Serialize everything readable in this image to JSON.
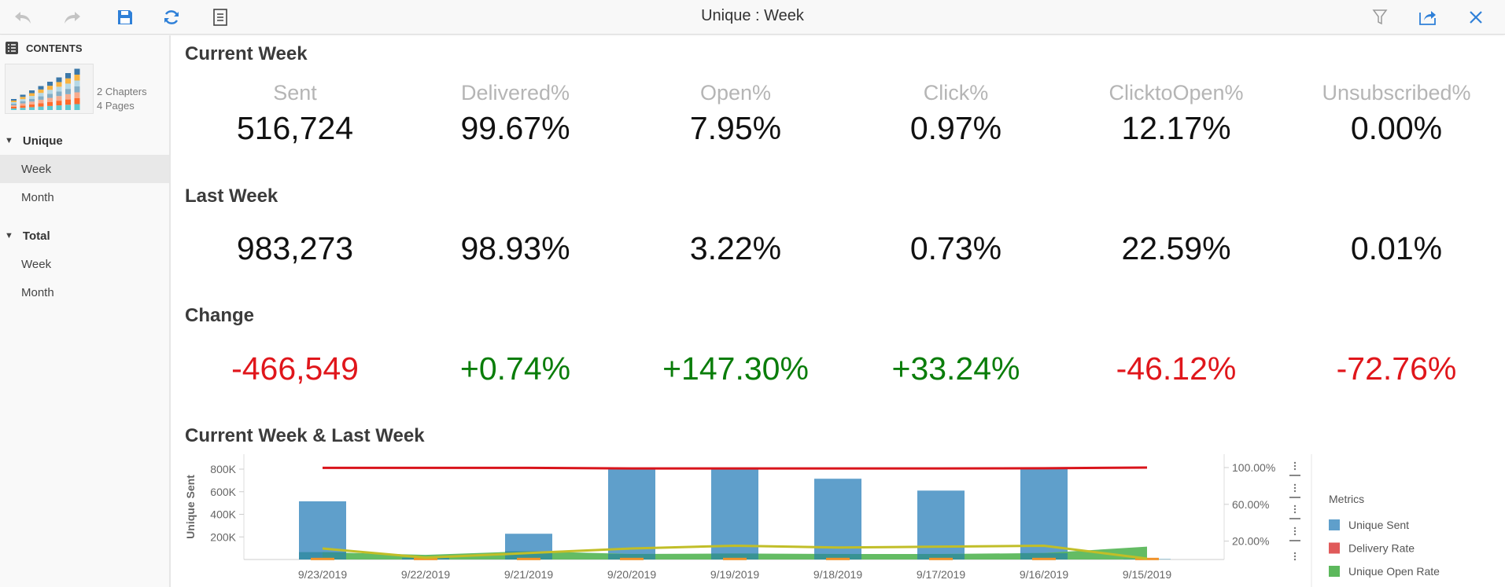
{
  "toolbar": {
    "title": "Unique : Week",
    "icons": [
      "undo-icon",
      "redo-icon",
      "save-icon",
      "refresh-icon",
      "document-list-icon",
      "filter-icon",
      "export-icon",
      "close-icon"
    ]
  },
  "sidebar": {
    "header": "CONTENTS",
    "chapters": "2 Chapters",
    "pages": "4 Pages",
    "groups": [
      {
        "label": "Unique",
        "items": [
          {
            "label": "Week",
            "active": true
          },
          {
            "label": "Month"
          }
        ]
      },
      {
        "label": "Total",
        "items": [
          {
            "label": "Week"
          },
          {
            "label": "Month"
          }
        ]
      }
    ]
  },
  "metrics": {
    "labels": [
      "Sent",
      "Delivered%",
      "Open%",
      "Click%",
      "ClicktoOpen%",
      "Unsubscribed%"
    ],
    "current_week": {
      "title": "Current Week",
      "values": [
        "516,724",
        "99.67%",
        "7.95%",
        "0.97%",
        "12.17%",
        "0.00%"
      ]
    },
    "last_week": {
      "title": "Last Week",
      "values": [
        "983,273",
        "98.93%",
        "3.22%",
        "0.73%",
        "22.59%",
        "0.01%"
      ]
    },
    "change": {
      "title": "Change",
      "values": [
        "-466,549",
        "+0.74%",
        "+147.30%",
        "+33.24%",
        "-46.12%",
        "-72.76%"
      ],
      "signs": [
        "neg",
        "pos",
        "pos",
        "pos",
        "neg",
        "neg"
      ]
    },
    "colors": {
      "negative": "#e0161b",
      "positive": "#0a7d0a"
    }
  },
  "chart_data": {
    "type": "bar",
    "title": "Current Week & Last Week",
    "ylabel": "Unique Sent",
    "categories": [
      "9/23/2019",
      "9/22/2019",
      "9/21/2019",
      "9/20/2019",
      "9/19/2019",
      "9/18/2019",
      "9/17/2019",
      "9/16/2019",
      "9/15/2019"
    ],
    "y_ticks": [
      "200K",
      "400K",
      "600K",
      "800K"
    ],
    "y2_ticks": [
      "20.00%",
      "60.00%",
      "100.00%"
    ],
    "ylim": [
      0,
      800000
    ],
    "y2lim": [
      0,
      100
    ],
    "legend_title": "Metrics",
    "legend": "right",
    "series": [
      {
        "name": "Unique Sent",
        "type": "bar",
        "axis": "left",
        "color": "#5f9fcb",
        "values": [
          515000,
          15000,
          228000,
          800000,
          800000,
          715000,
          610000,
          800000,
          3000
        ]
      },
      {
        "name": "Delivery Rate",
        "type": "line",
        "axis": "right",
        "color": "#d9141b",
        "values": [
          99.7,
          99.7,
          99.7,
          99.0,
          99.0,
          99.0,
          99.0,
          99.3,
          100.0
        ]
      },
      {
        "name": "Unique Open Rate",
        "type": "area",
        "axis": "right",
        "color": "#5cb85c",
        "values": [
          8,
          5,
          9,
          6,
          6.5,
          6,
          6,
          7,
          14
        ]
      },
      {
        "type": "line",
        "axis": "right",
        "color": "#c1be28",
        "values": [
          12,
          2,
          7,
          12,
          15,
          13,
          14,
          15,
          1
        ]
      },
      {
        "type": "marker",
        "axis": "right",
        "color": "#f0922a",
        "values": [
          1,
          1,
          1,
          1,
          1,
          1,
          1,
          1,
          1
        ]
      }
    ],
    "legend_colors": {
      "Unique Sent": "#5f9fcb",
      "Delivery Rate": "#e05a5a",
      "Unique Open Rate": "#5cb85c"
    }
  }
}
